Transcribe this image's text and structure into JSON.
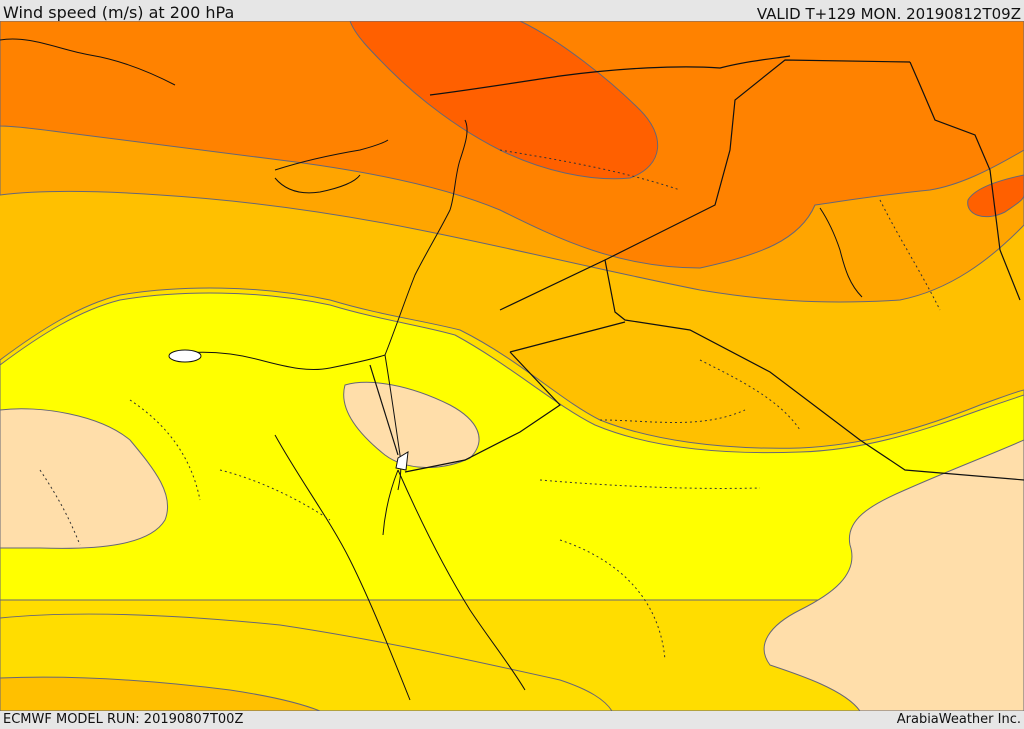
{
  "header": {
    "title": "Wind speed (m/s) at 200 hPa",
    "valid_time": "VALID T+129 MON. 20190812T09Z"
  },
  "footer": {
    "model_run": "ECMWF MODEL RUN: 20190807T00Z",
    "credit": "ArabiaWeather Inc."
  },
  "map": {
    "variable": "wind-speed",
    "pressure_level": "200 hPa",
    "colors": {
      "calm": "#ffdeaa",
      "low": "#ffff00",
      "moderate": "#ffdd00",
      "medium": "#ffc000",
      "high": "#ffa500",
      "strong": "#ff8200",
      "max": "#ff6000",
      "contour": "#555566",
      "border": "#111111"
    }
  }
}
